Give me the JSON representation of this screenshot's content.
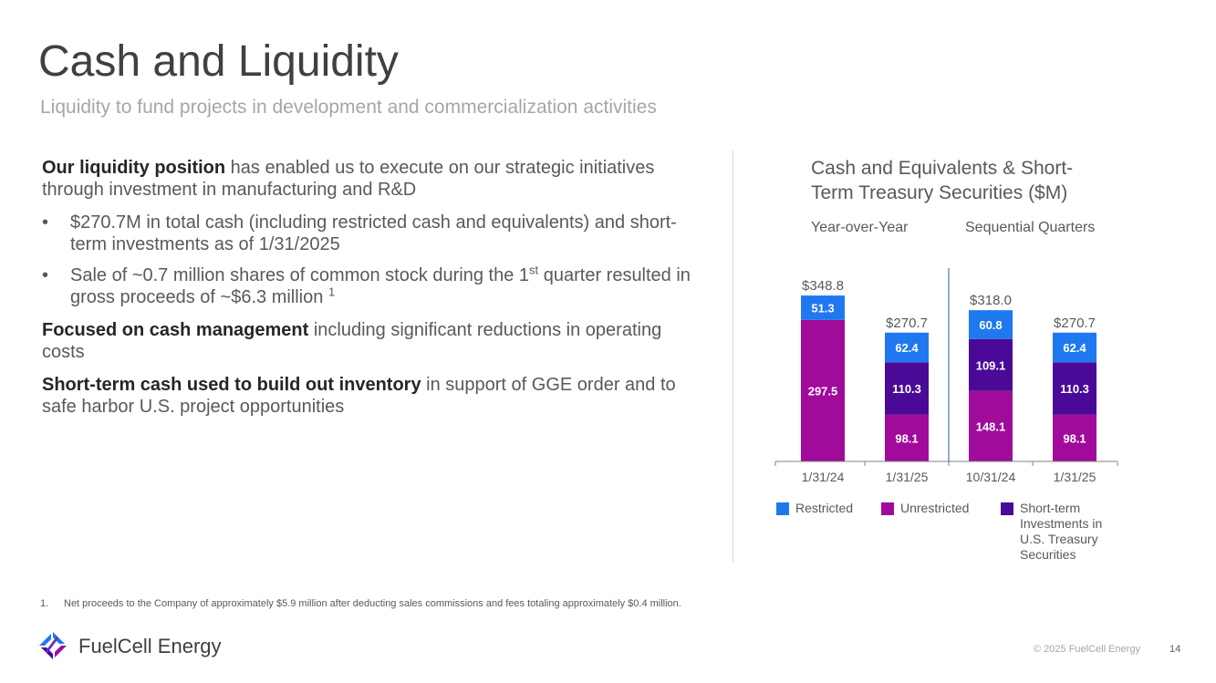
{
  "header": {
    "title": "Cash and Liquidity",
    "subtitle": "Liquidity to fund projects in development and commercialization activities"
  },
  "body": {
    "p1_bold": "Our liquidity position",
    "p1_rest": " has enabled us to execute on our strategic initiatives through investment in manufacturing and R&D",
    "bullets": [
      {
        "text": "$270.7M  in total cash (including restricted cash and equivalents) and short-term investments as of 1/31/2025"
      },
      {
        "text_pre": "Sale of ~0.7 million shares of common stock during the 1",
        "sup": "st",
        "text_post": " quarter resulted in gross proceeds of ~$6.3 million ",
        "ref": "1"
      }
    ],
    "bullet_char": "•",
    "p2_bold": "Focused on cash management",
    "p2_rest": " including significant reductions in operating costs",
    "p3_bold": "Short-term cash used to build out inventory",
    "p3_rest": " in support of GGE order and to safe harbor U.S. project opportunities"
  },
  "chart_data": {
    "type": "bar",
    "stacked": true,
    "title": "Cash and Equivalents & Short-Term Treasury Securities ($M)",
    "groups": [
      "Year-over-Year",
      "Sequential Quarters"
    ],
    "categories": [
      "1/31/24",
      "1/31/25",
      "10/31/24",
      "1/31/25"
    ],
    "series": [
      {
        "name": "Unrestricted",
        "color": "#a10b9b",
        "values": [
          297.5,
          98.1,
          148.1,
          98.1
        ]
      },
      {
        "name": "Short-term Investments in U.S. Treasury Securities",
        "color": "#4a0a97",
        "values": [
          0,
          110.3,
          109.1,
          110.3
        ]
      },
      {
        "name": "Restricted",
        "color": "#1f78f0",
        "values": [
          51.3,
          62.4,
          60.8,
          62.4
        ]
      }
    ],
    "totals": [
      "$348.8",
      "$270.7",
      "$318.0",
      "$270.7"
    ],
    "ylim": [
      0,
      350
    ],
    "legend": {
      "placement": "bottom",
      "items": [
        {
          "name": "Restricted",
          "color": "#1f78f0"
        },
        {
          "name": "Unrestricted",
          "color": "#a10b9b"
        },
        {
          "name": "Short-term Investments in U.S. Treasury Securities",
          "color": "#4a0a97"
        }
      ]
    }
  },
  "footnote": {
    "num": "1.",
    "text": "Net proceeds to the Company of approximately $5.9 million after deducting sales commissions and fees totaling approximately $0.4 million."
  },
  "footer": {
    "logo_text": "FuelCell Energy",
    "copyright": "© 2025 FuelCell Energy",
    "page": "14"
  }
}
